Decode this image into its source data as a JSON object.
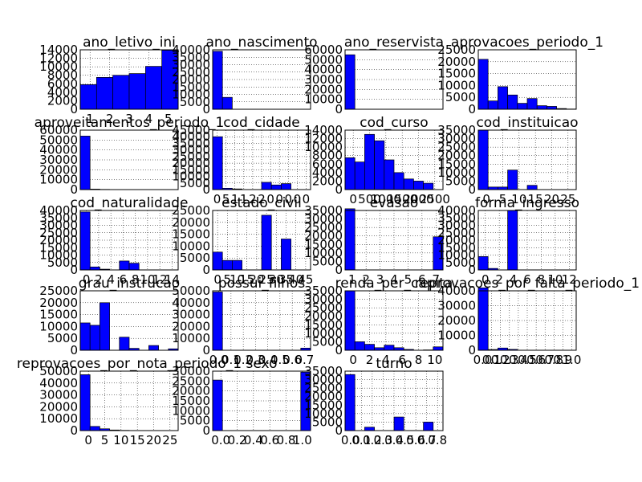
{
  "chart_data": [
    {
      "type": "bar",
      "title": "ano_letivo_ini",
      "yticks": [
        "0",
        "2000",
        "4000",
        "6000",
        "8000",
        "10000",
        "12000",
        "14000"
      ],
      "xticks": [
        "1",
        "2",
        "3",
        "4",
        "5"
      ],
      "ylim": [
        0,
        14000
      ],
      "bars": [
        5800,
        7500,
        8000,
        8400,
        10100,
        13900
      ],
      "bar_color": "#0000ff"
    },
    {
      "type": "bar",
      "title": "ano_nascimento",
      "yticks": [
        "0",
        "5000",
        "10000",
        "15000",
        "20000",
        "25000",
        "30000",
        "35000",
        "40000"
      ],
      "xticks": [],
      "ylim": [
        0,
        40000
      ],
      "bars": [
        39000,
        8000,
        0,
        0,
        0,
        0,
        0,
        0,
        0,
        0
      ],
      "bar_color": "#0000ff"
    },
    {
      "type": "bar",
      "title": "ano_reservista",
      "yticks": [
        "0",
        "10000",
        "20000",
        "30000",
        "40000",
        "50000",
        "60000"
      ],
      "xticks": [],
      "ylim": [
        0,
        60000
      ],
      "bars": [
        55000,
        0,
        0,
        0,
        0,
        0,
        0,
        0,
        0,
        0
      ],
      "bar_color": "#0000ff"
    },
    {
      "type": "bar",
      "title": "aprovacoes_periodo_1",
      "yticks": [
        "0",
        "5000",
        "10000",
        "15000",
        "20000",
        "25000"
      ],
      "xticks": [],
      "ylim": [
        0,
        25000
      ],
      "bars": [
        21000,
        3500,
        9500,
        6000,
        2500,
        4500,
        1500,
        1200,
        300,
        100
      ],
      "bar_color": "#0000ff"
    },
    {
      "type": "bar",
      "title": "aproveitamentos_periodo_1",
      "yticks": [
        "0",
        "10000",
        "20000",
        "30000",
        "40000",
        "50000",
        "60000"
      ],
      "xticks": [],
      "ylim": [
        0,
        60000
      ],
      "bars": [
        54000,
        500,
        200,
        100,
        0,
        0,
        0,
        0,
        0,
        0
      ],
      "bar_color": "#0000ff"
    },
    {
      "type": "bar",
      "title": "cod_cidade",
      "yticks": [
        "0",
        "5000",
        "10000",
        "15000",
        "20000",
        "25000",
        "30000",
        "35000",
        "40000",
        "45000"
      ],
      "xticks": [
        "0",
        "5",
        "1",
        "1",
        "2",
        "2",
        "0",
        "0",
        "0",
        "0",
        "0"
      ],
      "ylim": [
        0,
        45000
      ],
      "bars": [
        40000,
        1000,
        500,
        0,
        0,
        5500,
        3500,
        4500,
        0,
        0
      ],
      "bar_color": "#0000ff"
    },
    {
      "type": "bar",
      "title": "cod_curso",
      "yticks": [
        "0",
        "2000",
        "4000",
        "6000",
        "8000",
        "10000",
        "12000",
        "14000"
      ],
      "xticks": [
        "0",
        "500",
        "1000",
        "1500",
        "2000",
        "2500"
      ],
      "ylim": [
        0,
        14000
      ],
      "bars": [
        7500,
        6500,
        13000,
        11500,
        7000,
        4000,
        2500,
        2000,
        1500,
        0
      ],
      "bar_color": "#0000ff"
    },
    {
      "type": "bar",
      "title": "cod_instituicao",
      "yticks": [
        "0",
        "5000",
        "10000",
        "15000",
        "20000",
        "25000",
        "30000",
        "35000"
      ],
      "xticks": [
        "0",
        "5",
        "10",
        "15",
        "20",
        "25"
      ],
      "ylim": [
        0,
        35000
      ],
      "bars": [
        35000,
        1500,
        1500,
        11500,
        0,
        2500,
        0,
        0,
        0,
        0
      ],
      "bar_color": "#0000ff"
    },
    {
      "type": "bar",
      "title": "cod_naturalidade",
      "yticks": [
        "0",
        "5000",
        "10000",
        "15000",
        "20000",
        "25000",
        "30000",
        "35000",
        "40000"
      ],
      "xticks": [
        "0",
        "2",
        "4",
        "6",
        "8",
        "10",
        "12",
        "14"
      ],
      "ylim": [
        0,
        40000
      ],
      "bars": [
        39000,
        2000,
        500,
        0,
        6000,
        4500,
        0,
        0,
        0,
        0
      ],
      "bar_color": "#0000ff"
    },
    {
      "type": "bar",
      "title": "estado_civil",
      "yticks": [
        "0",
        "5000",
        "10000",
        "15000",
        "20000",
        "25000"
      ],
      "xticks": [
        "0",
        "5",
        "10",
        "15",
        "20",
        "25",
        "30",
        "35",
        "40",
        "45"
      ],
      "ylim": [
        0,
        25000
      ],
      "bars": [
        7500,
        4000,
        4000,
        0,
        0,
        23000,
        0,
        13000,
        0,
        0
      ],
      "bar_color": "#0000ff"
    },
    {
      "type": "bar",
      "title": "evasao",
      "yticks": [
        "0",
        "5000",
        "10000",
        "15000",
        "20000",
        "25000",
        "30000",
        "35000"
      ],
      "xticks": [
        "1",
        "2",
        "3",
        "4",
        "5",
        "6",
        "7"
      ],
      "ylim": [
        0,
        35000
      ],
      "bars": [
        36000,
        0,
        0,
        0,
        0,
        0,
        0,
        0,
        0,
        19500
      ],
      "bar_color": "#0000ff"
    },
    {
      "type": "bar",
      "title": "forma_ingresso",
      "yticks": [
        "0",
        "5000",
        "10000",
        "15000",
        "20000",
        "25000",
        "30000",
        "35000",
        "40000"
      ],
      "xticks": [
        "0",
        "2",
        "4",
        "6",
        "8",
        "10",
        "12"
      ],
      "ylim": [
        0,
        40000
      ],
      "bars": [
        9000,
        1000,
        0,
        40000,
        0,
        0,
        0,
        0,
        0,
        0
      ],
      "bar_color": "#0000ff"
    },
    {
      "type": "bar",
      "title": "grau_instrucao",
      "yticks": [
        "0",
        "5000",
        "10000",
        "15000",
        "20000",
        "25000"
      ],
      "xticks": [],
      "ylim": [
        0,
        25000
      ],
      "bars": [
        11500,
        10500,
        20000,
        0,
        5500,
        800,
        0,
        2000,
        0,
        600
      ],
      "bar_color": "#0000ff"
    },
    {
      "type": "bar",
      "title": "possui_filhos",
      "yticks": [
        "0",
        "10000",
        "20000",
        "30000",
        "40000",
        "50000"
      ],
      "xticks": [
        "0.0",
        "0.1",
        "0.2",
        "0.3",
        "0.4",
        "0.5",
        "0.6",
        "0.7"
      ],
      "ylim": [
        0,
        50000
      ],
      "bars": [
        49000,
        0,
        0,
        0,
        0,
        0,
        0,
        0,
        0,
        1800
      ],
      "bar_color": "#0000ff"
    },
    {
      "type": "bar",
      "title": "renda_per_capita",
      "yticks": [
        "0",
        "5000",
        "10000",
        "15000",
        "20000",
        "25000",
        "30000",
        "35000"
      ],
      "xticks": [
        "0",
        "2",
        "4",
        "6",
        "8",
        "10"
      ],
      "ylim": [
        0,
        35000
      ],
      "bars": [
        35000,
        5000,
        3500,
        1500,
        3000,
        1500,
        500,
        0,
        200,
        2000
      ],
      "bar_color": "#0000ff"
    },
    {
      "type": "bar",
      "title": "reprovacoes_por_falta_periodo_1",
      "yticks": [
        "0",
        "10000",
        "20000",
        "30000",
        "40000"
      ],
      "xticks": [
        "0.0",
        "0.1",
        "0.2",
        "0.3",
        "0.4",
        "0.5",
        "0.6",
        "0.7",
        "0.8",
        "0.9",
        "1.0"
      ],
      "ylim": [
        0,
        40000
      ],
      "bars": [
        42000,
        500,
        1500,
        600,
        0,
        0,
        0,
        0,
        0,
        0
      ],
      "bar_color": "#0000ff"
    },
    {
      "type": "bar",
      "title": "reprovacoes_por_nota_periodo_1",
      "yticks": [
        "0",
        "10000",
        "20000",
        "30000",
        "40000",
        "50000"
      ],
      "xticks": [
        "0",
        "5",
        "10",
        "15",
        "20",
        "25"
      ],
      "ylim": [
        0,
        50000
      ],
      "bars": [
        47000,
        3500,
        1500,
        500,
        200,
        100,
        0,
        0,
        0,
        0
      ],
      "bar_color": "#0000ff"
    },
    {
      "type": "bar",
      "title": "sexo",
      "yticks": [
        "0",
        "5000",
        "10000",
        "15000",
        "20000",
        "25000",
        "30000"
      ],
      "xticks": [
        "0.0",
        "0.2",
        "0.4",
        "0.6",
        "0.8",
        "1.0"
      ],
      "ylim": [
        0,
        30000
      ],
      "bars": [
        25500,
        0,
        0,
        0,
        0,
        0,
        0,
        0,
        0,
        29500
      ],
      "bar_color": "#0000ff"
    },
    {
      "type": "bar",
      "title": "turno",
      "yticks": [
        "0",
        "5000",
        "10000",
        "15000",
        "20000",
        "25000",
        "30000",
        "35000"
      ],
      "xticks": [
        "0.0",
        "0.1",
        "0.2",
        "0.3",
        "0.4",
        "0.5",
        "0.6",
        "0.7",
        "0.8"
      ],
      "ylim": [
        0,
        35000
      ],
      "bars": [
        33000,
        0,
        2000,
        0,
        0,
        8000,
        0,
        0,
        5000,
        0
      ],
      "bar_color": "#0000ff"
    }
  ]
}
